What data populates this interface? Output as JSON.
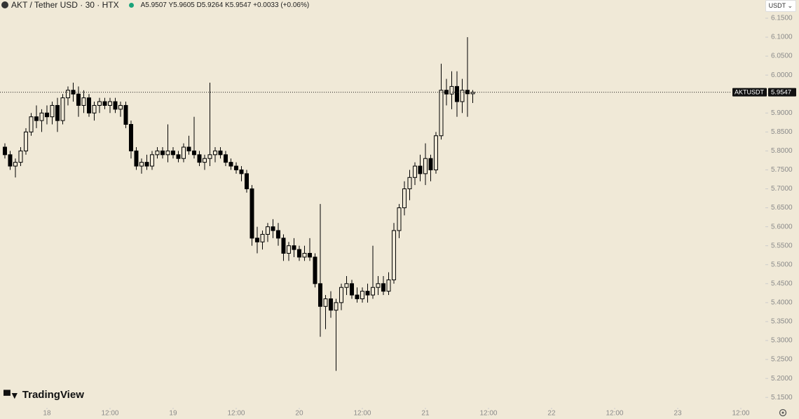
{
  "chart_data": {
    "type": "candlestick",
    "title": "AKT / Tether USD · 30 · HTX",
    "ohlc_legend": "A5.9507 Y5.9605 D5.9264 K5.9547 +0.0033 (+0.06%)",
    "currency": "USDT",
    "symbol": "AKTUSDT",
    "branding": "TradingView",
    "up_color": "#f0e9d7",
    "down_color": "#000000",
    "wick_color": "#000000",
    "x": [
      -8,
      -7,
      -6,
      -5,
      -4,
      -3,
      -2,
      -1,
      0,
      1,
      2,
      3,
      4,
      5,
      6,
      7,
      8,
      9,
      10,
      11,
      12,
      13,
      14,
      15,
      16,
      17,
      18,
      19,
      20,
      21,
      22,
      23,
      24,
      25,
      26,
      27,
      28,
      29,
      30,
      31,
      32,
      33,
      34,
      35,
      36,
      37,
      38,
      39,
      40,
      41,
      42,
      43,
      44,
      45,
      46,
      47,
      48,
      49,
      50,
      51,
      52,
      53,
      54,
      55,
      56,
      57,
      58,
      59,
      60,
      61,
      62,
      63,
      64,
      65,
      66,
      67,
      68,
      69,
      70,
      71,
      72,
      73,
      74,
      75,
      76,
      77,
      78,
      79,
      80,
      81
    ],
    "open": [
      5.81,
      5.79,
      5.76,
      5.77,
      5.8,
      5.85,
      5.89,
      5.88,
      5.9,
      5.89,
      5.92,
      5.88,
      5.94,
      5.96,
      5.95,
      5.92,
      5.94,
      5.9,
      5.92,
      5.93,
      5.92,
      5.93,
      5.91,
      5.92,
      5.87,
      5.8,
      5.76,
      5.77,
      5.76,
      5.79,
      5.8,
      5.79,
      5.8,
      5.79,
      5.78,
      5.81,
      5.8,
      5.79,
      5.77,
      5.78,
      5.79,
      5.8,
      5.79,
      5.77,
      5.76,
      5.75,
      5.74,
      5.7,
      5.57,
      5.56,
      5.58,
      5.6,
      5.59,
      5.57,
      5.53,
      5.55,
      5.54,
      5.52,
      5.53,
      5.52,
      5.45,
      5.39,
      5.41,
      5.38,
      5.4,
      5.44,
      5.45,
      5.42,
      5.41,
      5.43,
      5.42,
      5.44,
      5.45,
      5.43,
      5.46,
      5.59,
      5.65,
      5.7,
      5.73,
      5.76,
      5.74,
      5.78,
      5.75,
      5.84,
      5.96,
      5.95,
      5.97,
      5.93,
      5.96,
      5.9507
    ],
    "high": [
      5.82,
      5.8,
      5.78,
      5.81,
      5.86,
      5.9,
      5.92,
      5.91,
      5.92,
      5.93,
      5.94,
      5.95,
      5.97,
      5.98,
      5.97,
      5.96,
      5.95,
      5.93,
      5.94,
      5.94,
      5.94,
      5.94,
      5.93,
      5.93,
      5.88,
      5.81,
      5.78,
      5.79,
      5.8,
      5.81,
      5.81,
      5.87,
      5.81,
      5.8,
      5.82,
      5.84,
      5.89,
      5.8,
      5.79,
      5.98,
      5.81,
      5.81,
      5.8,
      5.78,
      5.77,
      5.76,
      5.75,
      5.71,
      5.6,
      5.59,
      5.61,
      5.62,
      5.61,
      5.58,
      5.56,
      5.57,
      5.55,
      5.55,
      5.57,
      5.53,
      5.66,
      5.42,
      5.43,
      5.41,
      5.45,
      5.47,
      5.46,
      5.44,
      5.44,
      5.45,
      5.55,
      5.47,
      5.47,
      5.48,
      5.61,
      5.66,
      5.72,
      5.75,
      5.77,
      5.79,
      5.82,
      5.79,
      5.85,
      6.03,
      5.99,
      6.01,
      6.01,
      5.99,
      6.1,
      5.9605
    ],
    "low": [
      5.78,
      5.75,
      5.73,
      5.76,
      5.79,
      5.84,
      5.86,
      5.85,
      5.87,
      5.87,
      5.85,
      5.87,
      5.92,
      5.93,
      5.89,
      5.9,
      5.89,
      5.88,
      5.9,
      5.91,
      5.9,
      5.9,
      5.89,
      5.86,
      5.78,
      5.75,
      5.74,
      5.75,
      5.75,
      5.78,
      5.78,
      5.77,
      5.78,
      5.77,
      5.77,
      5.79,
      5.78,
      5.76,
      5.75,
      5.76,
      5.77,
      5.78,
      5.76,
      5.75,
      5.74,
      5.72,
      5.69,
      5.55,
      5.53,
      5.54,
      5.56,
      5.57,
      5.55,
      5.51,
      5.51,
      5.52,
      5.51,
      5.51,
      5.51,
      5.44,
      5.31,
      5.33,
      5.36,
      5.22,
      5.38,
      5.42,
      5.41,
      5.4,
      5.4,
      5.4,
      5.41,
      5.42,
      5.42,
      5.42,
      5.45,
      5.57,
      5.63,
      5.67,
      5.71,
      5.72,
      5.71,
      5.72,
      5.74,
      5.83,
      5.92,
      5.91,
      5.89,
      5.9,
      5.89,
      5.9264
    ],
    "close": [
      5.79,
      5.76,
      5.77,
      5.8,
      5.85,
      5.89,
      5.88,
      5.9,
      5.89,
      5.92,
      5.88,
      5.94,
      5.96,
      5.95,
      5.92,
      5.94,
      5.9,
      5.92,
      5.93,
      5.92,
      5.93,
      5.91,
      5.92,
      5.87,
      5.8,
      5.76,
      5.77,
      5.76,
      5.79,
      5.8,
      5.79,
      5.8,
      5.79,
      5.78,
      5.81,
      5.8,
      5.79,
      5.77,
      5.78,
      5.79,
      5.8,
      5.79,
      5.77,
      5.76,
      5.75,
      5.74,
      5.7,
      5.57,
      5.56,
      5.58,
      5.6,
      5.59,
      5.57,
      5.53,
      5.55,
      5.54,
      5.52,
      5.53,
      5.52,
      5.45,
      5.39,
      5.41,
      5.38,
      5.4,
      5.44,
      5.45,
      5.42,
      5.41,
      5.43,
      5.42,
      5.44,
      5.45,
      5.43,
      5.46,
      5.59,
      5.65,
      5.7,
      5.73,
      5.76,
      5.74,
      5.78,
      5.75,
      5.84,
      5.96,
      5.95,
      5.97,
      5.93,
      5.96,
      5.9507,
      5.9547
    ],
    "xlim": [
      -8.93,
      136.4
    ],
    "xticks": [
      {
        "value": 0,
        "label": "18"
      },
      {
        "value": 12,
        "label": "12:00"
      },
      {
        "value": 24,
        "label": "19"
      },
      {
        "value": 36,
        "label": "12:00"
      },
      {
        "value": 48,
        "label": "20"
      },
      {
        "value": 60,
        "label": "12:00"
      },
      {
        "value": 72,
        "label": "21"
      },
      {
        "value": 84,
        "label": "12:00"
      },
      {
        "value": 96,
        "label": "22"
      },
      {
        "value": 108,
        "label": "12:00"
      },
      {
        "value": 120,
        "label": "23"
      },
      {
        "value": 132,
        "label": "12:00"
      }
    ],
    "ylim": [
      5.13,
      6.198
    ],
    "yticks": [
      {
        "value": 6.15,
        "label": "6.1500"
      },
      {
        "value": 6.1,
        "label": "6.1000"
      },
      {
        "value": 6.05,
        "label": "6.0500"
      },
      {
        "value": 6.0,
        "label": "6.0000"
      },
      {
        "value": 5.95,
        "label": "5.9500"
      },
      {
        "value": 5.9,
        "label": "5.9000"
      },
      {
        "value": 5.85,
        "label": "5.8500"
      },
      {
        "value": 5.8,
        "label": "5.8000"
      },
      {
        "value": 5.75,
        "label": "5.7500"
      },
      {
        "value": 5.7,
        "label": "5.7000"
      },
      {
        "value": 5.65,
        "label": "5.6500"
      },
      {
        "value": 5.6,
        "label": "5.6000"
      },
      {
        "value": 5.55,
        "label": "5.5500"
      },
      {
        "value": 5.5,
        "label": "5.5000"
      },
      {
        "value": 5.45,
        "label": "5.4500"
      },
      {
        "value": 5.4,
        "label": "5.4000"
      },
      {
        "value": 5.35,
        "label": "5.3500"
      },
      {
        "value": 5.3,
        "label": "5.3000"
      },
      {
        "value": 5.25,
        "label": "5.2500"
      },
      {
        "value": 5.2,
        "label": "5.2000"
      },
      {
        "value": 5.15,
        "label": "5.1500"
      }
    ]
  }
}
